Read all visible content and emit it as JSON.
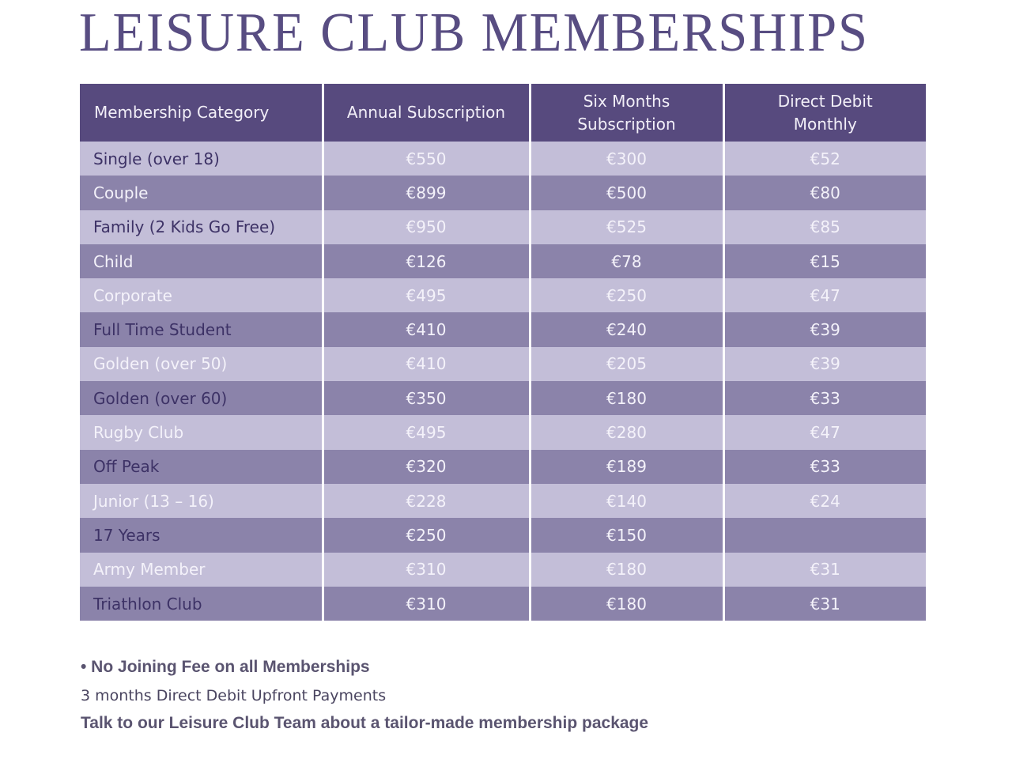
{
  "title": "LEISURE CLUB MEMBERSHIPS",
  "colors": {
    "header": "#574a7e",
    "row_light": "#c3bed8",
    "row_dark": "#8b83aa",
    "title": "#584d82"
  },
  "table": {
    "headers": [
      "Membership Category",
      "Annual Subscription",
      "Six Months Subscription",
      "Direct Debit Monthly"
    ],
    "rows": [
      {
        "category": "Single (over 18)",
        "annual": "€550",
        "six_months": "€300",
        "monthly": "€52"
      },
      {
        "category": "Couple",
        "annual": "€899",
        "six_months": "€500",
        "monthly": "€80"
      },
      {
        "category": "Family (2 Kids Go Free)",
        "annual": "€950",
        "six_months": "€525",
        "monthly": "€85"
      },
      {
        "category": "Child",
        "annual": "€126",
        "six_months": "€78",
        "monthly": "€15"
      },
      {
        "category": "Corporate",
        "annual": "€495",
        "six_months": "€250",
        "monthly": "€47"
      },
      {
        "category": "Full Time Student",
        "annual": "€410",
        "six_months": "€240",
        "monthly": "€39"
      },
      {
        "category": "Golden (over 50)",
        "annual": "€410",
        "six_months": "€205",
        "monthly": "€39"
      },
      {
        "category": "Golden (over 60)",
        "annual": "€350",
        "six_months": "€180",
        "monthly": "€33"
      },
      {
        "category": "Rugby Club",
        "annual": "€495",
        "six_months": "€280",
        "monthly": "€47"
      },
      {
        "category": "Off Peak",
        "annual": "€320",
        "six_months": "€189",
        "monthly": "€33"
      },
      {
        "category": "Junior (13 – 16)",
        "annual": "€228",
        "six_months": "€140",
        "monthly": "€24"
      },
      {
        "category": "17 Years",
        "annual": "€250",
        "six_months": "€150",
        "monthly": ""
      },
      {
        "category": "Army Member",
        "annual": "€310",
        "six_months": "€180",
        "monthly": "€31"
      },
      {
        "category": "Triathlon Club",
        "annual": "€310",
        "six_months": "€180",
        "monthly": "€31"
      }
    ]
  },
  "notes": {
    "no_joining_fee": "• No Joining Fee on all Memberships",
    "direct_debit": "3 months Direct Debit Upfront Payments",
    "talk_to_team": "Talk to our Leisure Club Team about a tailor-made membership package"
  }
}
